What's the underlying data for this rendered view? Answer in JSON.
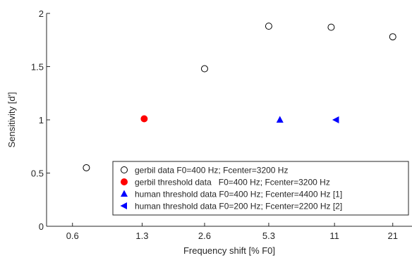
{
  "chart_data": {
    "type": "scatter",
    "xlabel": "Frequency shift [% F0]",
    "ylabel": "Sensitivity [d']",
    "x_scale": "log",
    "ylim": [
      0,
      2
    ],
    "xlim": [
      0.45,
      26
    ],
    "x_ticks": [
      {
        "value": 0.6,
        "label": "0.6"
      },
      {
        "value": 1.3,
        "label": "1.3"
      },
      {
        "value": 2.6,
        "label": "2.6"
      },
      {
        "value": 5.3,
        "label": "5.3"
      },
      {
        "value": 11,
        "label": "11"
      },
      {
        "value": 21,
        "label": "21"
      }
    ],
    "y_ticks": [
      {
        "value": 0,
        "label": "0"
      },
      {
        "value": 0.5,
        "label": "0.5"
      },
      {
        "value": 1,
        "label": "1"
      },
      {
        "value": 1.5,
        "label": "1.5"
      },
      {
        "value": 2,
        "label": "2"
      }
    ],
    "grid": false,
    "legend_position": "bottom-right",
    "series": [
      {
        "name": "gerbil data F0=400 Hz; Fcenter=3200 Hz",
        "marker": "circle-open",
        "color": "#000000",
        "points": [
          {
            "x": 0.7,
            "y": 0.55
          },
          {
            "x": 2.6,
            "y": 1.48
          },
          {
            "x": 5.3,
            "y": 1.88
          },
          {
            "x": 10.6,
            "y": 1.87
          },
          {
            "x": 21,
            "y": 1.78
          }
        ]
      },
      {
        "name": "gerbil threshold data   F0=400 Hz; Fcenter=3200 Hz",
        "marker": "circle-filled",
        "color": "#ff0000",
        "points": [
          {
            "x": 1.33,
            "y": 1.01
          }
        ]
      },
      {
        "name": "human threshold data F0=400 Hz; Fcenter=4400 Hz [1]",
        "marker": "triangle-up",
        "color": "#0000ff",
        "points": [
          {
            "x": 6.0,
            "y": 1.0
          }
        ]
      },
      {
        "name": "human threshold data F0=200 Hz; Fcenter=2200 Hz [2]",
        "marker": "triangle-left",
        "color": "#0000ff",
        "points": [
          {
            "x": 11.2,
            "y": 1.0
          }
        ]
      }
    ]
  }
}
